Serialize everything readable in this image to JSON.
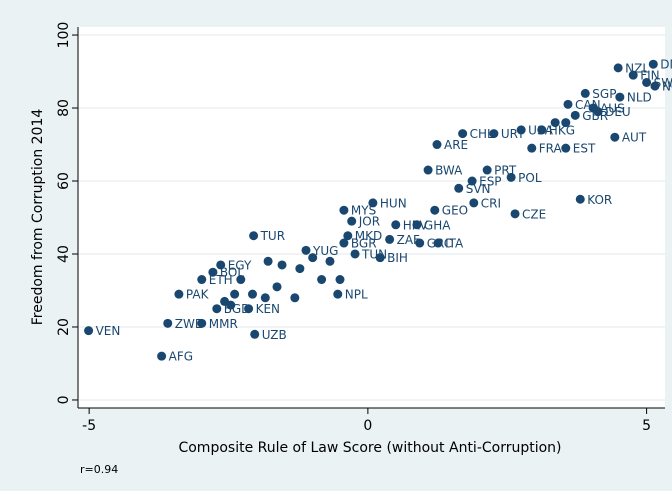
{
  "chart_data": {
    "type": "scatter",
    "title": null,
    "xlabel": "Composite Rule of Law Score (without Anti-Corruption)",
    "ylabel": "Freedom from Corruption 2014",
    "note": "r=0.94",
    "color": "#1a476f",
    "grid": true,
    "xlim": [
      -5.2,
      5.33
    ],
    "xticks": [
      -5,
      0,
      5
    ],
    "ylim": [
      -2.2,
      102.2
    ],
    "yticks": [
      0,
      20,
      40,
      60,
      80,
      100
    ],
    "labels": [
      "DNK",
      "NZL",
      "FIN",
      "SWE",
      "NOR",
      "SGP",
      "NLD",
      "CAN",
      "AUS",
      "GBR",
      "DEU",
      "USA",
      "HKG",
      "CHL",
      "URY",
      "AUT",
      "ARE",
      "FRA",
      "EST",
      "BWA",
      "PRT",
      "ESP",
      "POL",
      "SVN",
      "KOR",
      "CRI",
      "CZE",
      "HUN",
      "MYS",
      "GEO",
      "JOR",
      "HRV",
      "GHA",
      "MKD",
      "TUR",
      "BGR",
      "ZAF",
      "GRC",
      "ITA",
      "YUG",
      "BIH",
      "TUN",
      "EGY",
      "BOL",
      "ETH",
      "PAK",
      "VEN",
      "ZWE",
      "MMR",
      "AFG",
      "UZB",
      "KEN",
      "BGD",
      "NPL",
      null,
      null,
      null,
      null,
      null,
      null,
      null,
      null,
      null,
      null,
      null,
      null,
      null,
      null,
      null,
      null,
      null
    ],
    "x": [
      5.12,
      4.49,
      4.76,
      5.0,
      5.15,
      3.9,
      4.52,
      3.59,
      4.04,
      3.72,
      4.13,
      2.75,
      3.12,
      1.7,
      2.26,
      4.43,
      1.24,
      2.94,
      3.55,
      1.08,
      2.14,
      1.87,
      2.57,
      1.63,
      3.81,
      1.9,
      2.64,
      0.09,
      -0.43,
      1.2,
      -0.29,
      0.5,
      0.88,
      -0.36,
      -2.05,
      -0.43,
      0.39,
      0.93,
      1.26,
      -1.11,
      0.22,
      -0.23,
      -2.64,
      -2.78,
      -2.98,
      -3.39,
      -5.01,
      -3.59,
      -2.98,
      -3.7,
      -2.03,
      -2.14,
      -2.71,
      -0.54,
      -1.79,
      -1.54,
      -1.22,
      -0.99,
      -0.68,
      -1.63,
      -1.31,
      -2.07,
      -2.39,
      -2.28,
      -2.57,
      -1.84,
      -0.83,
      -0.5,
      3.36,
      3.55,
      -2.46
    ],
    "values": [
      92,
      91,
      89,
      87,
      86,
      84,
      83,
      81,
      80,
      78,
      79,
      74,
      74,
      73,
      73,
      72,
      70,
      69,
      69,
      63,
      63,
      60,
      61,
      58,
      55,
      54,
      51,
      54,
      52,
      52,
      49,
      48,
      48,
      45,
      45,
      43,
      44,
      43,
      43,
      41,
      39,
      40,
      37,
      35,
      33,
      29,
      19,
      21,
      21,
      12,
      18,
      25,
      25,
      29,
      38,
      37,
      36,
      39,
      38,
      31,
      28,
      29,
      29,
      33,
      27,
      28,
      33,
      33,
      76,
      76,
      26
    ]
  }
}
